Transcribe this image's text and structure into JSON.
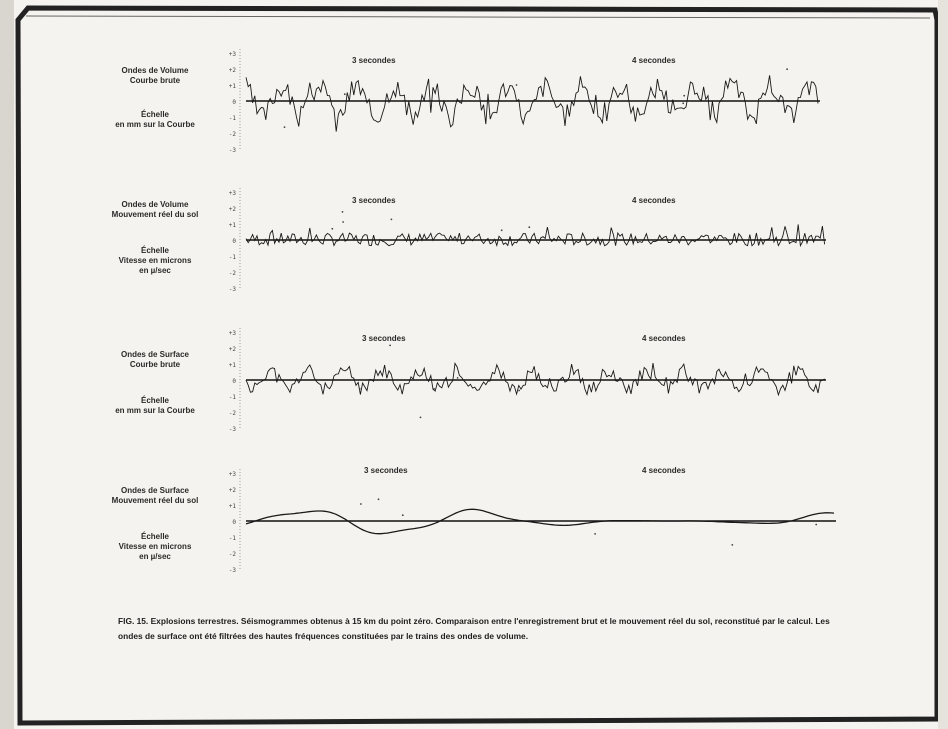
{
  "panels": [
    {
      "id": "p1",
      "label_top": [
        "Ondes de Volume",
        "Courbe brute"
      ],
      "label_bottom": [
        "Échelle",
        "en mm sur la Courbe"
      ],
      "annotations": [
        "3 secondes",
        "4 secondes"
      ],
      "ticks": [
        "+3",
        "+2",
        "+1",
        "0",
        "-1",
        "-2",
        "-3"
      ]
    },
    {
      "id": "p2",
      "label_top": [
        "Ondes de Volume",
        "Mouvement réel du sol"
      ],
      "label_bottom": [
        "Échelle",
        "Vitesse en microns",
        "en µ/sec"
      ],
      "annotations": [
        "3 secondes",
        "4 secondes"
      ],
      "ticks": [
        "+3",
        "+2",
        "+1",
        "0",
        "-1",
        "-2",
        "-3"
      ]
    },
    {
      "id": "p3",
      "label_top": [
        "Ondes de Surface",
        "Courbe brute"
      ],
      "label_bottom": [
        "Échelle",
        "en mm sur la Courbe"
      ],
      "annotations": [
        "3 secondes",
        "4 secondes"
      ],
      "ticks": [
        "+3",
        "+2",
        "+1",
        "0",
        "-1",
        "-2",
        "-3"
      ]
    },
    {
      "id": "p4",
      "label_top": [
        "Ondes de Surface",
        "Mouvement réel du sol"
      ],
      "label_bottom": [
        "Échelle",
        "Vitesse en microns",
        "en µ/sec"
      ],
      "annotations": [
        "3 secondes",
        "4 secondes"
      ],
      "ticks": [
        "+3",
        "+2",
        "+1",
        "0",
        "-1",
        "-2",
        "-3"
      ]
    }
  ],
  "caption": "FIG. 15. Explosions terrestres. Séismogrammes obtenus à 15 km du point zéro. Comparaison entre l'enregistrement brut et le mouvement réel du sol, reconstitué par le calcul. Les ondes de surface ont été filtrées des hautes fréquences constituées par le trains des ondes de volume."
}
